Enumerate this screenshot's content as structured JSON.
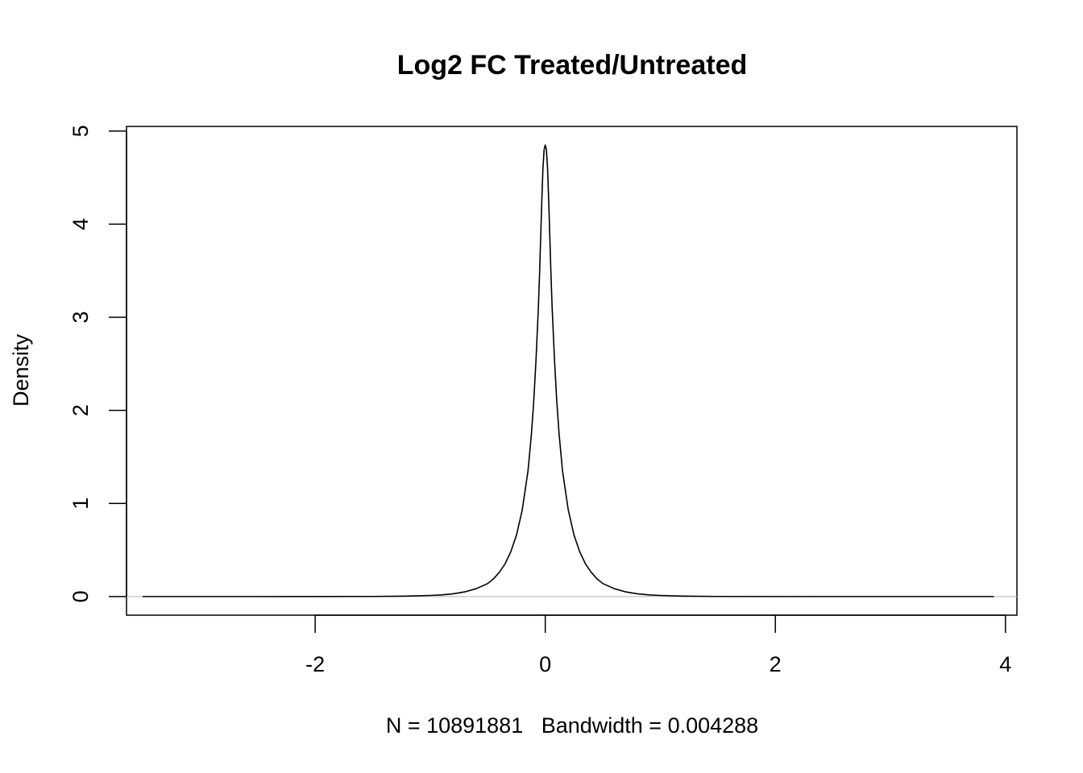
{
  "chart_data": {
    "type": "line",
    "title": "Log2 FC Treated/Untreated",
    "xlabel": "N = 10891881   Bandwidth = 0.004288",
    "ylabel": "Density",
    "xlim": [
      -3.64,
      4.1
    ],
    "ylim": [
      -0.2,
      5.05
    ],
    "x_ticks": [
      -2,
      0,
      2,
      4
    ],
    "y_ticks": [
      0,
      1,
      2,
      3,
      4,
      5
    ],
    "x_tick_labels": [
      "-2",
      "0",
      "2",
      "4"
    ],
    "y_tick_labels": [
      "0",
      "1",
      "2",
      "3",
      "4",
      "5"
    ],
    "baseline": 0,
    "baseline_color": "#c0c0c0",
    "line_color": "#000000",
    "grid": false,
    "series": [
      {
        "x": [
          -3.5,
          -2.5,
          -1.5,
          -1.2,
          -1.0,
          -0.9,
          -0.8,
          -0.7,
          -0.6,
          -0.5,
          -0.45,
          -0.4,
          -0.35,
          -0.3,
          -0.25,
          -0.2,
          -0.15,
          -0.12,
          -0.1,
          -0.08,
          -0.06,
          -0.05,
          -0.04,
          -0.03,
          -0.02,
          -0.01,
          0.0,
          0.01,
          0.02,
          0.03,
          0.04,
          0.05,
          0.06,
          0.08,
          0.1,
          0.12,
          0.15,
          0.2,
          0.25,
          0.3,
          0.35,
          0.4,
          0.45,
          0.5,
          0.6,
          0.7,
          0.8,
          0.9,
          1.0,
          1.2,
          1.5,
          2.5,
          3.9
        ],
        "y": [
          0.0,
          0.0,
          0.001,
          0.005,
          0.012,
          0.018,
          0.03,
          0.05,
          0.085,
          0.14,
          0.19,
          0.26,
          0.35,
          0.48,
          0.66,
          0.93,
          1.35,
          1.75,
          2.1,
          2.55,
          3.1,
          3.45,
          3.85,
          4.25,
          4.6,
          4.8,
          4.85,
          4.8,
          4.6,
          4.25,
          3.85,
          3.45,
          3.1,
          2.55,
          2.1,
          1.75,
          1.35,
          0.93,
          0.66,
          0.48,
          0.35,
          0.26,
          0.19,
          0.14,
          0.085,
          0.05,
          0.03,
          0.018,
          0.012,
          0.005,
          0.001,
          0.0,
          0.0
        ]
      }
    ]
  }
}
